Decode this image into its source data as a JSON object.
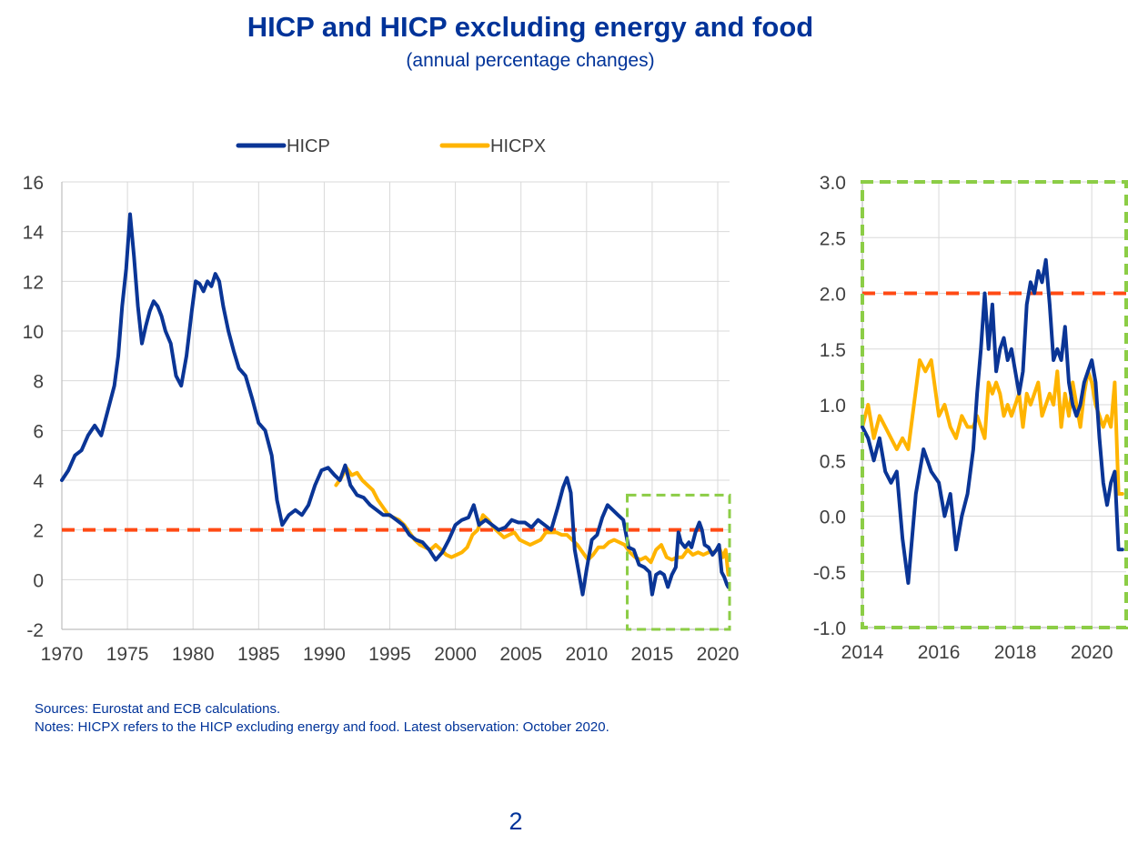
{
  "title": "HICP and HICP excluding energy and food",
  "subtitle": "(annual percentage changes)",
  "sources": "Sources: Eurostat and ECB calculations.",
  "notes": "Notes: HICPX refers to the HICP excluding energy and food. Latest observation: October 2020.",
  "page_number": "2",
  "colors": {
    "hicp": "#0a3596",
    "hicpx": "#ffb400",
    "target": "#ff4a14",
    "highlight": "#8ccd46",
    "grid": "#d9d9d9",
    "text": "#003399",
    "axis": "#404040"
  },
  "chart_data": [
    {
      "type": "line",
      "xlim": [
        1970,
        2020.9
      ],
      "ylim": [
        -2,
        16
      ],
      "x_ticks": [
        1970,
        1975,
        1980,
        1985,
        1990,
        1995,
        2000,
        2005,
        2010,
        2015,
        2020
      ],
      "y_ticks": [
        -2,
        0,
        2,
        4,
        6,
        8,
        10,
        12,
        14,
        16
      ],
      "x_tick_labels": [
        "1970",
        "1975",
        "1980",
        "1985",
        "1990",
        "1995",
        "2000",
        "2005",
        "2010",
        "2015",
        "2020"
      ],
      "y_tick_labels": [
        "-2",
        "0",
        "2",
        "4",
        "6",
        "8",
        "10",
        "12",
        "14",
        "16"
      ],
      "grid": true,
      "legend": "top",
      "reference_line": {
        "y": 2,
        "style": "dashed"
      },
      "highlight_box": {
        "x": [
          2013.1,
          2020.9
        ],
        "y": [
          -2,
          3.4
        ],
        "style": "dashed"
      },
      "series": [
        {
          "name": "HICP",
          "x": [
            1970.0,
            1970.5,
            1971.0,
            1971.5,
            1972.0,
            1972.5,
            1973.0,
            1973.5,
            1974.0,
            1974.3,
            1974.6,
            1974.9,
            1975.2,
            1975.5,
            1975.8,
            1976.1,
            1976.4,
            1976.7,
            1977.0,
            1977.3,
            1977.6,
            1977.9,
            1978.3,
            1978.7,
            1979.1,
            1979.5,
            1979.9,
            1980.2,
            1980.5,
            1980.8,
            1981.1,
            1981.4,
            1981.7,
            1982.0,
            1982.3,
            1982.7,
            1983.1,
            1983.5,
            1984.0,
            1984.5,
            1985.0,
            1985.5,
            1986.0,
            1986.4,
            1986.8,
            1987.3,
            1987.8,
            1988.3,
            1988.8,
            1989.3,
            1989.8,
            1990.3,
            1990.8,
            1991.2,
            1991.6,
            1992.0,
            1992.5,
            1993.0,
            1993.5,
            1994.0,
            1994.5,
            1995.0,
            1995.5,
            1996.0,
            1996.5,
            1997.0,
            1997.5,
            1998.0,
            1998.5,
            1999.0,
            1999.5,
            2000.0,
            2000.5,
            2001.0,
            2001.4,
            2001.8,
            2002.3,
            2002.8,
            2003.3,
            2003.8,
            2004.3,
            2004.8,
            2005.3,
            2005.8,
            2006.3,
            2006.8,
            2007.3,
            2007.8,
            2008.2,
            2008.5,
            2008.8,
            2009.1,
            2009.4,
            2009.7,
            2010.0,
            2010.4,
            2010.8,
            2011.2,
            2011.6,
            2012.0,
            2012.4,
            2012.8,
            2013.2,
            2013.6,
            2014.0,
            2014.4,
            2014.8,
            2015.0,
            2015.3,
            2015.6,
            2015.9,
            2016.2,
            2016.5,
            2016.8,
            2017.0,
            2017.2,
            2017.5,
            2017.8,
            2018.0,
            2018.3,
            2018.6,
            2018.8,
            2019.0,
            2019.3,
            2019.6,
            2019.9,
            2020.1,
            2020.3,
            2020.5,
            2020.7,
            2020.8
          ],
          "y": [
            4.0,
            4.4,
            5.0,
            5.2,
            5.8,
            6.2,
            5.8,
            6.8,
            7.8,
            9.0,
            11.0,
            12.5,
            14.7,
            13.0,
            11.0,
            9.5,
            10.2,
            10.8,
            11.2,
            11.0,
            10.6,
            10.0,
            9.5,
            8.2,
            7.8,
            9.0,
            10.8,
            12.0,
            11.9,
            11.6,
            12.0,
            11.8,
            12.3,
            12.0,
            11.0,
            10.0,
            9.2,
            8.5,
            8.2,
            7.3,
            6.3,
            6.0,
            5.0,
            3.2,
            2.2,
            2.6,
            2.8,
            2.6,
            3.0,
            3.8,
            4.4,
            4.5,
            4.2,
            4.0,
            4.6,
            3.8,
            3.4,
            3.3,
            3.0,
            2.8,
            2.6,
            2.6,
            2.4,
            2.2,
            1.8,
            1.6,
            1.5,
            1.2,
            0.8,
            1.1,
            1.6,
            2.2,
            2.4,
            2.5,
            3.0,
            2.2,
            2.4,
            2.2,
            2.0,
            2.1,
            2.4,
            2.3,
            2.3,
            2.1,
            2.4,
            2.2,
            2.0,
            2.9,
            3.7,
            4.1,
            3.5,
            1.2,
            0.3,
            -0.6,
            0.4,
            1.6,
            1.8,
            2.5,
            3.0,
            2.8,
            2.6,
            2.4,
            1.3,
            1.2,
            0.6,
            0.5,
            0.3,
            -0.6,
            0.2,
            0.3,
            0.2,
            -0.3,
            0.2,
            0.5,
            1.9,
            1.5,
            1.3,
            1.5,
            1.3,
            1.9,
            2.3,
            2.0,
            1.4,
            1.3,
            1.0,
            1.2,
            1.4,
            0.3,
            0.1,
            -0.2,
            -0.3
          ]
        },
        {
          "name": "HICPX",
          "x": [
            1990.9,
            1991.3,
            1991.7,
            1992.1,
            1992.5,
            1992.9,
            1993.3,
            1993.7,
            1994.1,
            1994.5,
            1994.9,
            1995.3,
            1995.7,
            1996.1,
            1996.5,
            1996.9,
            1997.3,
            1997.7,
            1998.1,
            1998.5,
            1998.9,
            1999.3,
            1999.7,
            2000.1,
            2000.5,
            2000.9,
            2001.3,
            2001.7,
            2002.1,
            2002.5,
            2002.9,
            2003.3,
            2003.7,
            2004.1,
            2004.5,
            2004.9,
            2005.3,
            2005.7,
            2006.1,
            2006.5,
            2006.9,
            2007.3,
            2007.7,
            2008.1,
            2008.5,
            2008.9,
            2009.3,
            2009.7,
            2010.1,
            2010.5,
            2010.9,
            2011.3,
            2011.7,
            2012.1,
            2012.5,
            2012.9,
            2013.3,
            2013.7,
            2014.1,
            2014.5,
            2014.9,
            2015.3,
            2015.7,
            2016.1,
            2016.5,
            2016.9,
            2017.3,
            2017.7,
            2018.1,
            2018.5,
            2018.9,
            2019.3,
            2019.7,
            2020.1,
            2020.4,
            2020.6,
            2020.8
          ],
          "y": [
            3.8,
            4.1,
            4.5,
            4.2,
            4.3,
            4.0,
            3.8,
            3.6,
            3.2,
            2.9,
            2.6,
            2.5,
            2.4,
            2.2,
            1.9,
            1.6,
            1.4,
            1.3,
            1.2,
            1.4,
            1.2,
            1.0,
            0.9,
            1.0,
            1.1,
            1.3,
            1.8,
            2.0,
            2.6,
            2.4,
            2.1,
            1.9,
            1.7,
            1.8,
            1.9,
            1.6,
            1.5,
            1.4,
            1.5,
            1.6,
            1.9,
            1.9,
            1.9,
            1.8,
            1.8,
            1.6,
            1.4,
            1.1,
            0.8,
            1.0,
            1.3,
            1.3,
            1.5,
            1.6,
            1.5,
            1.4,
            1.1,
            0.9,
            0.8,
            0.9,
            0.7,
            1.2,
            1.4,
            0.9,
            0.8,
            0.9,
            0.9,
            1.2,
            1.0,
            1.1,
            1.0,
            1.1,
            1.1,
            1.3,
            0.9,
            1.2,
            0.2
          ]
        }
      ]
    },
    {
      "type": "line",
      "xlim": [
        2014,
        2020.9
      ],
      "ylim": [
        -1,
        3
      ],
      "x_ticks": [
        2014,
        2016,
        2018,
        2020
      ],
      "y_ticks": [
        -1.0,
        -0.5,
        0.0,
        0.5,
        1.0,
        1.5,
        2.0,
        2.5,
        3.0
      ],
      "x_tick_labels": [
        "2014",
        "2016",
        "2018",
        "2020"
      ],
      "y_tick_labels": [
        "-1.0",
        "-0.5",
        "0.0",
        "0.5",
        "1.0",
        "1.5",
        "2.0",
        "2.5",
        "3.0"
      ],
      "grid": true,
      "reference_line": {
        "y": 2.0,
        "style": "dashed"
      },
      "series": [
        {
          "name": "HICP",
          "x": [
            2014.0,
            2014.15,
            2014.3,
            2014.45,
            2014.6,
            2014.75,
            2014.9,
            2015.05,
            2015.2,
            2015.4,
            2015.6,
            2015.8,
            2016.0,
            2016.15,
            2016.3,
            2016.45,
            2016.6,
            2016.75,
            2016.9,
            2017.0,
            2017.1,
            2017.2,
            2017.3,
            2017.4,
            2017.5,
            2017.6,
            2017.7,
            2017.8,
            2017.9,
            2018.0,
            2018.1,
            2018.2,
            2018.3,
            2018.4,
            2018.5,
            2018.6,
            2018.7,
            2018.8,
            2018.9,
            2019.0,
            2019.1,
            2019.2,
            2019.3,
            2019.4,
            2019.5,
            2019.6,
            2019.7,
            2019.8,
            2019.9,
            2020.0,
            2020.1,
            2020.2,
            2020.3,
            2020.4,
            2020.5,
            2020.6,
            2020.7,
            2020.8
          ],
          "y": [
            0.8,
            0.7,
            0.5,
            0.7,
            0.4,
            0.3,
            0.4,
            -0.2,
            -0.6,
            0.2,
            0.6,
            0.4,
            0.3,
            0.0,
            0.2,
            -0.3,
            0.0,
            0.2,
            0.6,
            1.1,
            1.5,
            2.0,
            1.5,
            1.9,
            1.3,
            1.5,
            1.6,
            1.4,
            1.5,
            1.3,
            1.1,
            1.3,
            1.9,
            2.1,
            2.0,
            2.2,
            2.1,
            2.3,
            1.9,
            1.4,
            1.5,
            1.4,
            1.7,
            1.2,
            1.0,
            0.9,
            1.0,
            1.2,
            1.3,
            1.4,
            1.2,
            0.7,
            0.3,
            0.1,
            0.3,
            0.4,
            -0.3,
            -0.3
          ]
        },
        {
          "name": "HICPX",
          "x": [
            2014.0,
            2014.15,
            2014.3,
            2014.45,
            2014.6,
            2014.75,
            2014.9,
            2015.05,
            2015.2,
            2015.35,
            2015.5,
            2015.65,
            2015.8,
            2016.0,
            2016.15,
            2016.3,
            2016.45,
            2016.6,
            2016.75,
            2016.9,
            2017.0,
            2017.1,
            2017.2,
            2017.3,
            2017.4,
            2017.5,
            2017.6,
            2017.7,
            2017.8,
            2017.9,
            2018.0,
            2018.1,
            2018.2,
            2018.3,
            2018.4,
            2018.5,
            2018.6,
            2018.7,
            2018.8,
            2018.9,
            2019.0,
            2019.1,
            2019.2,
            2019.3,
            2019.4,
            2019.5,
            2019.6,
            2019.7,
            2019.8,
            2019.9,
            2020.0,
            2020.1,
            2020.2,
            2020.3,
            2020.4,
            2020.5,
            2020.6,
            2020.7,
            2020.8
          ],
          "y": [
            0.8,
            1.0,
            0.7,
            0.9,
            0.8,
            0.7,
            0.6,
            0.7,
            0.6,
            1.0,
            1.4,
            1.3,
            1.4,
            0.9,
            1.0,
            0.8,
            0.7,
            0.9,
            0.8,
            0.8,
            0.9,
            0.8,
            0.7,
            1.2,
            1.1,
            1.2,
            1.1,
            0.9,
            1.0,
            0.9,
            1.0,
            1.1,
            0.8,
            1.1,
            1.0,
            1.1,
            1.2,
            0.9,
            1.0,
            1.1,
            1.0,
            1.3,
            0.8,
            1.1,
            0.9,
            1.2,
            1.0,
            0.8,
            1.1,
            1.3,
            1.2,
            1.0,
            0.9,
            0.8,
            0.9,
            0.8,
            1.2,
            0.2,
            0.2
          ]
        }
      ]
    }
  ]
}
